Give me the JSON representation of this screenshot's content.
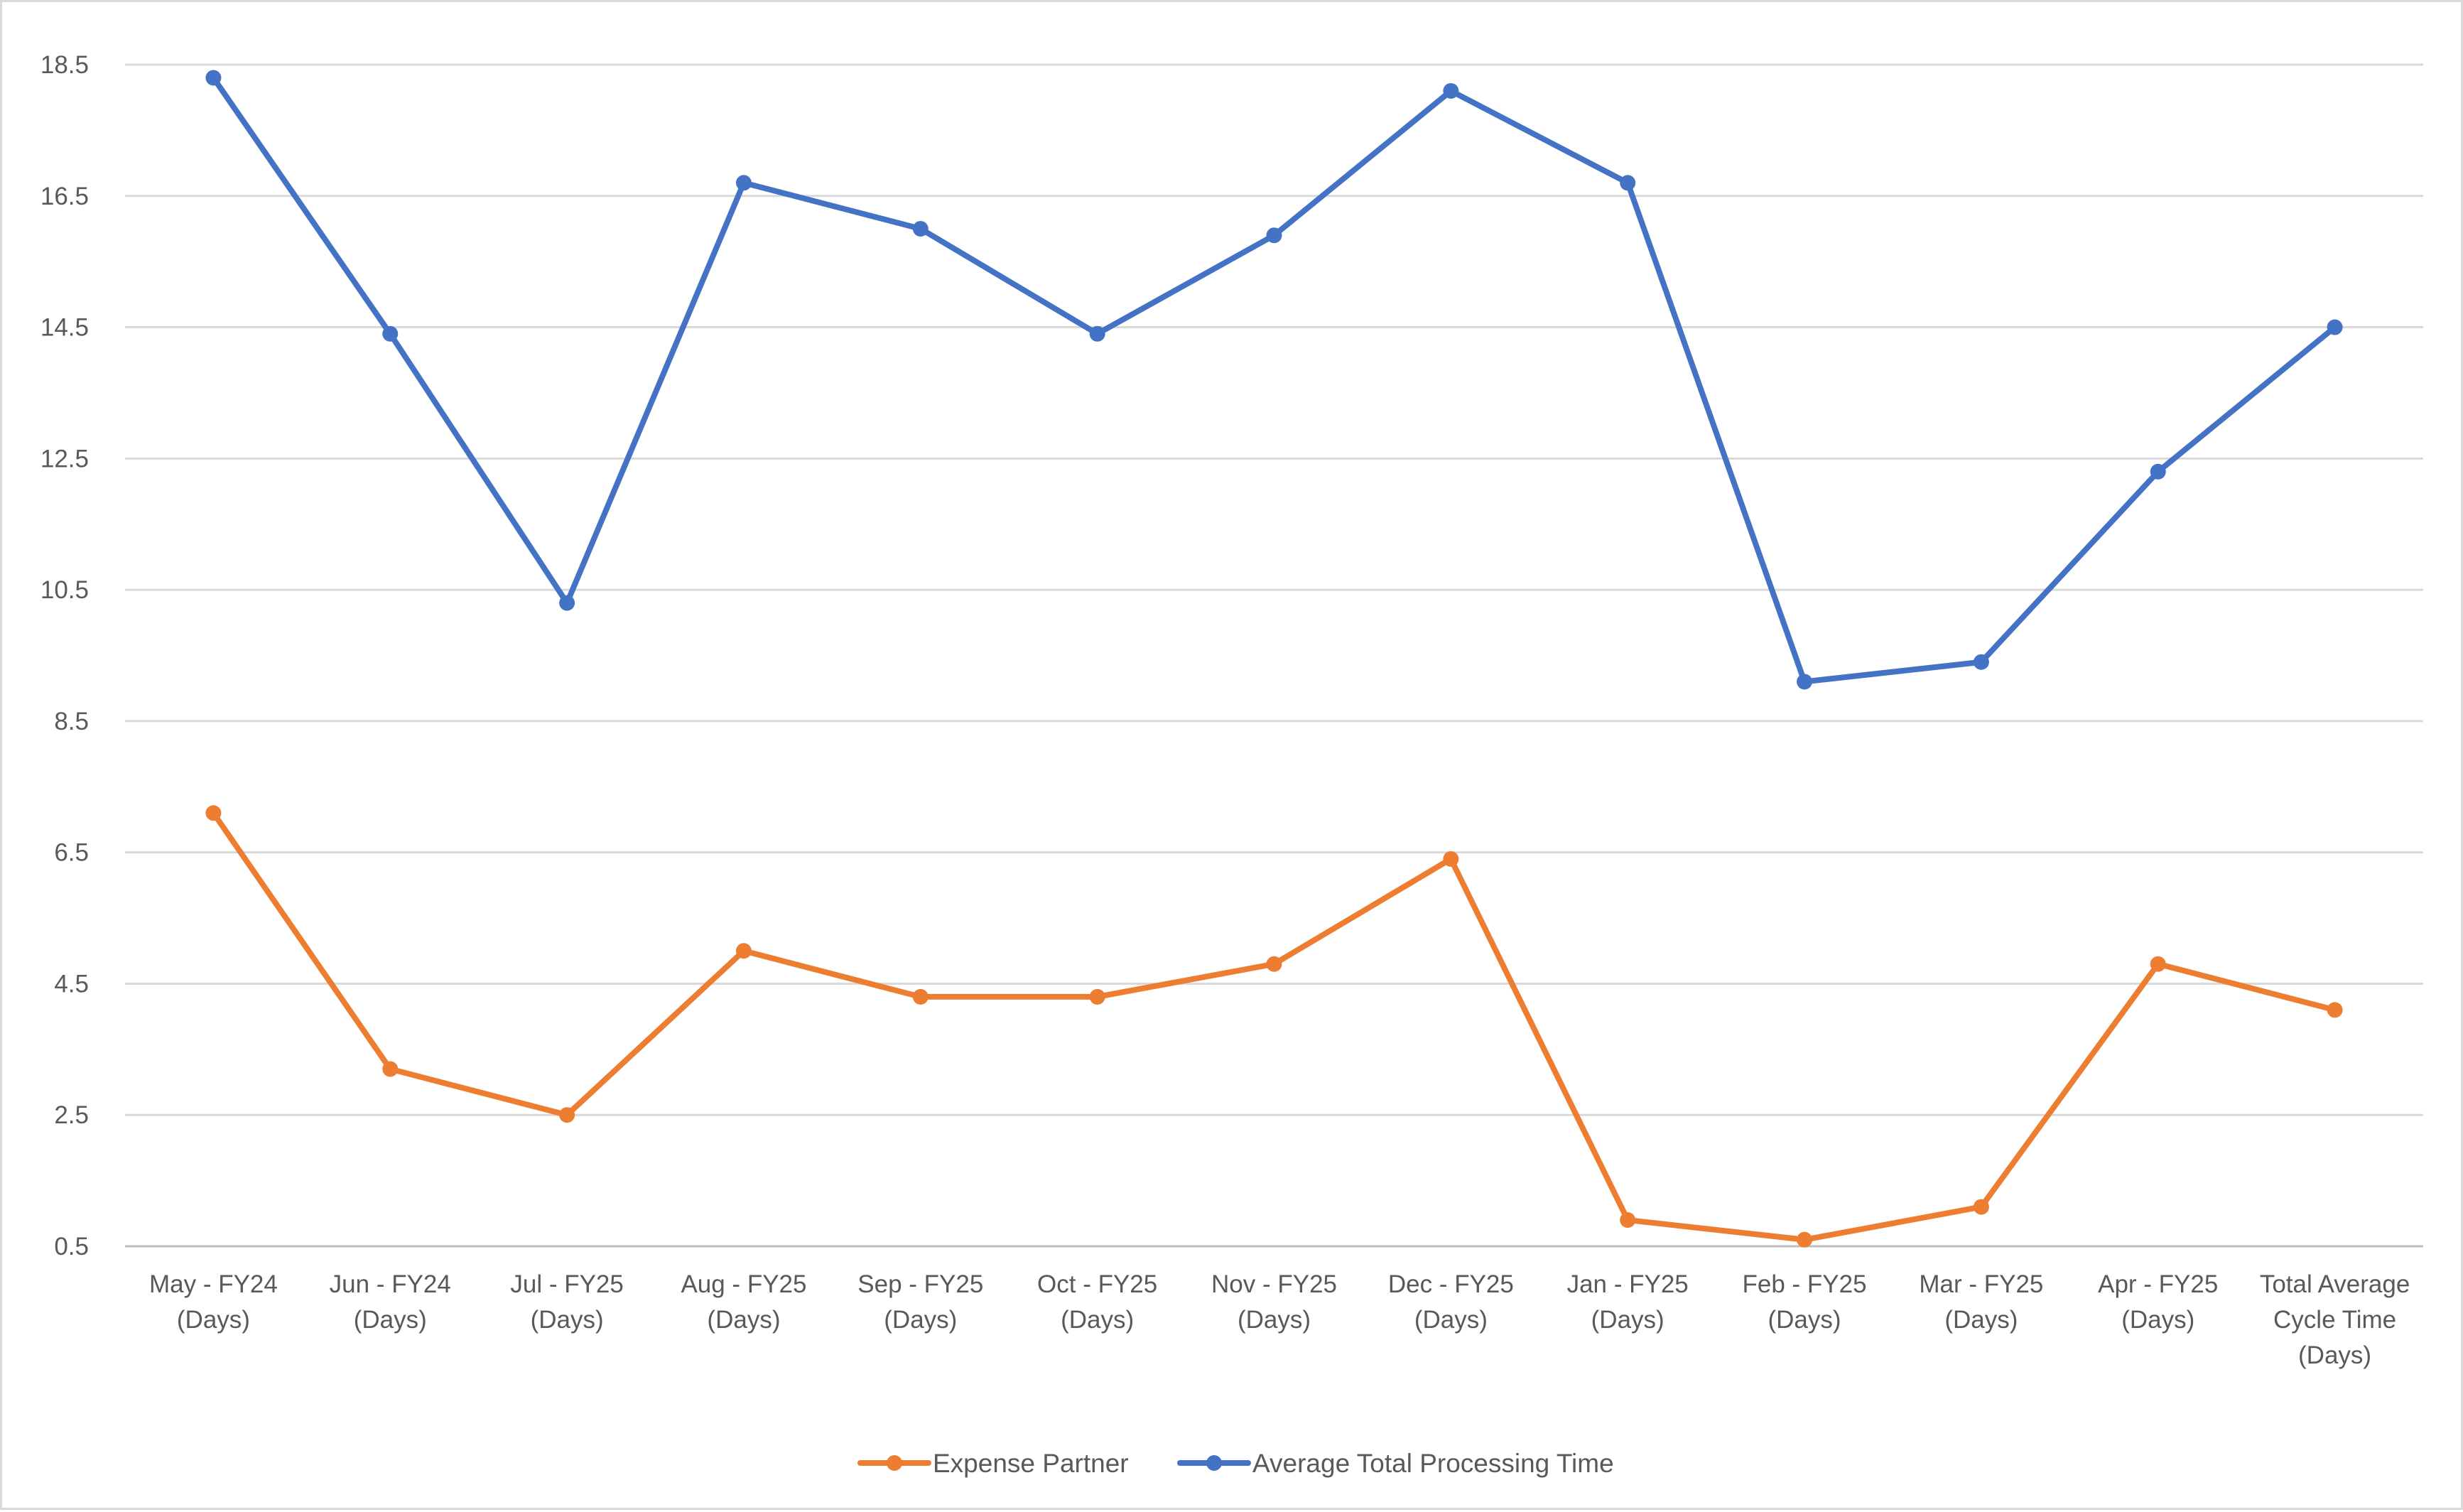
{
  "chart_data": {
    "type": "line",
    "categories": [
      [
        "May - FY24",
        "(Days)"
      ],
      [
        "Jun - FY24",
        "(Days)"
      ],
      [
        "Jul - FY25",
        "(Days)"
      ],
      [
        "Aug - FY25",
        "(Days)"
      ],
      [
        "Sep - FY25",
        "(Days)"
      ],
      [
        "Oct - FY25",
        "(Days)"
      ],
      [
        "Nov - FY25",
        "(Days)"
      ],
      [
        "Dec - FY25",
        "(Days)"
      ],
      [
        "Jan - FY25",
        "(Days)"
      ],
      [
        "Feb - FY25",
        "(Days)"
      ],
      [
        "Mar - FY25",
        "(Days)"
      ],
      [
        "Apr - FY25",
        "(Days)"
      ],
      [
        "Total Average",
        "Cycle Time",
        "(Days)"
      ]
    ],
    "series": [
      {
        "name": "Expense Partner",
        "color": "#ED7D31",
        "values": [
          7.1,
          3.2,
          2.5,
          5.0,
          4.3,
          4.3,
          4.8,
          6.4,
          0.9,
          0.6,
          1.1,
          4.8,
          4.1
        ]
      },
      {
        "name": "Average Total Processing Time",
        "color": "#4472C4",
        "values": [
          18.3,
          14.4,
          10.3,
          16.7,
          16.0,
          14.4,
          15.9,
          18.1,
          16.7,
          9.1,
          9.4,
          12.3,
          14.5
        ]
      }
    ],
    "yticks": [
      "0.5",
      "2.5",
      "4.5",
      "6.5",
      "8.5",
      "10.5",
      "12.5",
      "14.5",
      "16.5",
      "18.5"
    ],
    "ylim": [
      0.5,
      18.5
    ],
    "grid": true,
    "legend_position": "bottom",
    "legend_order": [
      0,
      1
    ],
    "title": "",
    "xlabel": "",
    "ylabel": ""
  }
}
